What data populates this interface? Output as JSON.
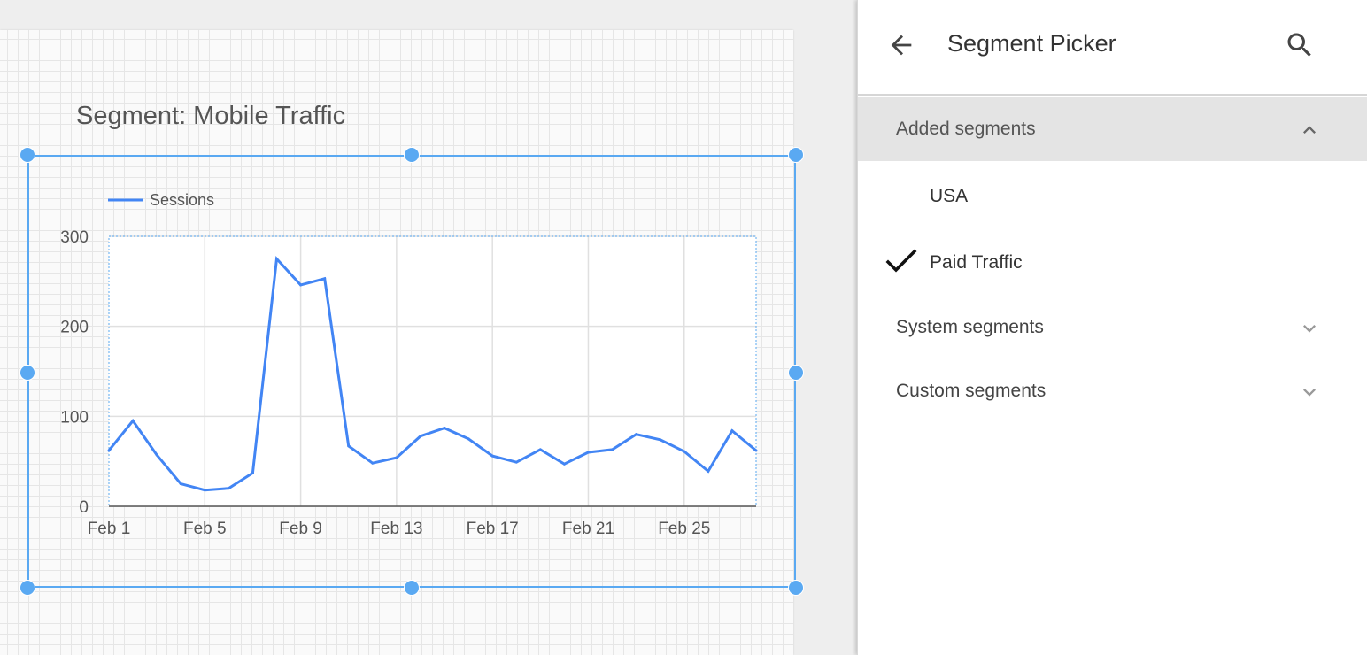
{
  "report": {
    "chart_title": "Segment: Mobile Traffic"
  },
  "chart_data": {
    "type": "line",
    "title": "Segment: Mobile Traffic",
    "legend_position": "top-left",
    "series": [
      {
        "name": "Sessions",
        "color": "#4285f4",
        "values": [
          62,
          95,
          57,
          25,
          18,
          20,
          37,
          275,
          246,
          253,
          67,
          48,
          54,
          78,
          87,
          75,
          56,
          49,
          63,
          47,
          60,
          63,
          80,
          74,
          61,
          39,
          84,
          62
        ]
      }
    ],
    "x": [
      "Feb 1",
      "Feb 2",
      "Feb 3",
      "Feb 4",
      "Feb 5",
      "Feb 6",
      "Feb 7",
      "Feb 8",
      "Feb 9",
      "Feb 10",
      "Feb 11",
      "Feb 12",
      "Feb 13",
      "Feb 14",
      "Feb 15",
      "Feb 16",
      "Feb 17",
      "Feb 18",
      "Feb 19",
      "Feb 20",
      "Feb 21",
      "Feb 22",
      "Feb 23",
      "Feb 24",
      "Feb 25",
      "Feb 26",
      "Feb 27",
      "Feb 28"
    ],
    "x_tick_labels": [
      "Feb 1",
      "Feb 5",
      "Feb 9",
      "Feb 13",
      "Feb 17",
      "Feb 21",
      "Feb 25"
    ],
    "y_ticks": [
      0,
      100,
      200,
      300
    ],
    "ylim": [
      0,
      300
    ],
    "xlabel": "",
    "ylabel": "",
    "grid": true
  },
  "panel": {
    "title": "Segment Picker",
    "back_icon": "arrow-back-icon",
    "search_icon": "search-icon",
    "sections": [
      {
        "label": "Added segments",
        "expanded": true,
        "items": [
          {
            "label": "USA",
            "checked": false
          },
          {
            "label": "Paid Traffic",
            "checked": true
          }
        ]
      },
      {
        "label": "System segments",
        "expanded": false
      },
      {
        "label": "Custom segments",
        "expanded": false
      }
    ]
  },
  "colors": {
    "selection": "#5aa9f2",
    "line": "#4285f4",
    "expanded_row": "#e4e4e4"
  }
}
